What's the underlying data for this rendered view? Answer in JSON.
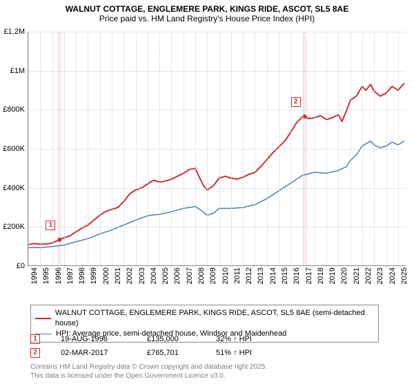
{
  "title": {
    "line1": "WALNUT COTTAGE, ENGLEMERE PARK, KINGS RIDE, ASCOT, SL5 8AE",
    "line2": "Price paid vs. HM Land Registry's House Price Index (HPI)",
    "fontsize": 12,
    "color": "#000000"
  },
  "chart": {
    "type": "line",
    "background_color": "#ffffff",
    "grid_color": "#d0d0d0",
    "x_years": [
      1994,
      1995,
      1996,
      1997,
      1998,
      1999,
      2000,
      2001,
      2002,
      2003,
      2004,
      2005,
      2006,
      2007,
      2008,
      2009,
      2010,
      2011,
      2012,
      2013,
      2014,
      2015,
      2016,
      2017,
      2018,
      2019,
      2020,
      2021,
      2022,
      2023,
      2024,
      2025
    ],
    "y_ticks": [
      0,
      200000,
      400000,
      600000,
      800000,
      1000000,
      1200000
    ],
    "y_tick_labels": [
      "£0",
      "£200K",
      "£400K",
      "£600K",
      "£800K",
      "£1M",
      "£1.2M"
    ],
    "ylim": [
      0,
      1200000
    ],
    "xlim": [
      1994,
      2025.7
    ],
    "label_fontsize": 11,
    "series": [
      {
        "name": "property",
        "label": "WALNUT COTTAGE, ENGLEMERE PARK, KINGS RIDE, ASCOT, SL5 8AE (semi-detached house)",
        "color": "#cc2f33",
        "line_width": 2,
        "data": [
          [
            1994.0,
            110000
          ],
          [
            1994.5,
            115000
          ],
          [
            1995.0,
            112000
          ],
          [
            1995.5,
            113000
          ],
          [
            1996.0,
            118000
          ],
          [
            1996.6,
            135000
          ],
          [
            1997.0,
            145000
          ],
          [
            1997.5,
            155000
          ],
          [
            1998.0,
            175000
          ],
          [
            1998.5,
            195000
          ],
          [
            1999.0,
            210000
          ],
          [
            1999.5,
            235000
          ],
          [
            2000.0,
            260000
          ],
          [
            2000.5,
            280000
          ],
          [
            2001.0,
            290000
          ],
          [
            2001.5,
            300000
          ],
          [
            2002.0,
            330000
          ],
          [
            2002.5,
            370000
          ],
          [
            2003.0,
            390000
          ],
          [
            2003.5,
            400000
          ],
          [
            2004.0,
            420000
          ],
          [
            2004.5,
            440000
          ],
          [
            2005.0,
            430000
          ],
          [
            2005.5,
            435000
          ],
          [
            2006.0,
            445000
          ],
          [
            2006.5,
            460000
          ],
          [
            2007.0,
            475000
          ],
          [
            2007.5,
            495000
          ],
          [
            2008.0,
            500000
          ],
          [
            2008.3,
            460000
          ],
          [
            2008.7,
            410000
          ],
          [
            2009.0,
            390000
          ],
          [
            2009.5,
            410000
          ],
          [
            2010.0,
            450000
          ],
          [
            2010.5,
            460000
          ],
          [
            2011.0,
            450000
          ],
          [
            2011.5,
            445000
          ],
          [
            2012.0,
            455000
          ],
          [
            2012.5,
            470000
          ],
          [
            2013.0,
            480000
          ],
          [
            2013.5,
            510000
          ],
          [
            2014.0,
            545000
          ],
          [
            2014.5,
            580000
          ],
          [
            2015.0,
            610000
          ],
          [
            2015.5,
            640000
          ],
          [
            2016.0,
            685000
          ],
          [
            2016.5,
            735000
          ],
          [
            2017.0,
            765000
          ],
          [
            2017.17,
            765701
          ],
          [
            2017.5,
            755000
          ],
          [
            2018.0,
            760000
          ],
          [
            2018.5,
            770000
          ],
          [
            2019.0,
            750000
          ],
          [
            2019.5,
            760000
          ],
          [
            2020.0,
            775000
          ],
          [
            2020.3,
            740000
          ],
          [
            2020.7,
            800000
          ],
          [
            2021.0,
            850000
          ],
          [
            2021.5,
            870000
          ],
          [
            2022.0,
            920000
          ],
          [
            2022.3,
            900000
          ],
          [
            2022.7,
            930000
          ],
          [
            2023.0,
            895000
          ],
          [
            2023.5,
            870000
          ],
          [
            2024.0,
            885000
          ],
          [
            2024.5,
            920000
          ],
          [
            2025.0,
            900000
          ],
          [
            2025.5,
            935000
          ]
        ]
      },
      {
        "name": "hpi",
        "label": "HPI: Average price, semi-detached house, Windsor and Maidenhead",
        "color": "#4a7fb0",
        "line_width": 1.5,
        "data": [
          [
            1994.0,
            95000
          ],
          [
            1995.0,
            95000
          ],
          [
            1996.0,
            100000
          ],
          [
            1997.0,
            108000
          ],
          [
            1998.0,
            125000
          ],
          [
            1999.0,
            140000
          ],
          [
            2000.0,
            165000
          ],
          [
            2001.0,
            185000
          ],
          [
            2002.0,
            210000
          ],
          [
            2003.0,
            235000
          ],
          [
            2004.0,
            258000
          ],
          [
            2005.0,
            265000
          ],
          [
            2006.0,
            278000
          ],
          [
            2007.0,
            295000
          ],
          [
            2008.0,
            305000
          ],
          [
            2008.5,
            285000
          ],
          [
            2009.0,
            260000
          ],
          [
            2009.5,
            270000
          ],
          [
            2010.0,
            295000
          ],
          [
            2011.0,
            295000
          ],
          [
            2012.0,
            300000
          ],
          [
            2013.0,
            315000
          ],
          [
            2014.0,
            345000
          ],
          [
            2015.0,
            385000
          ],
          [
            2016.0,
            425000
          ],
          [
            2017.0,
            465000
          ],
          [
            2018.0,
            480000
          ],
          [
            2019.0,
            475000
          ],
          [
            2020.0,
            490000
          ],
          [
            2020.7,
            510000
          ],
          [
            2021.0,
            540000
          ],
          [
            2021.5,
            570000
          ],
          [
            2022.0,
            615000
          ],
          [
            2022.7,
            640000
          ],
          [
            2023.0,
            620000
          ],
          [
            2023.5,
            605000
          ],
          [
            2024.0,
            615000
          ],
          [
            2024.5,
            635000
          ],
          [
            2025.0,
            620000
          ],
          [
            2025.5,
            640000
          ]
        ]
      }
    ],
    "sale_markers": [
      {
        "n": "1",
        "year": 1996.63,
        "value": 135000,
        "box_color": "#cc2f33"
      },
      {
        "n": "2",
        "year": 2017.17,
        "value": 765701,
        "box_color": "#cc2f33"
      }
    ],
    "sale_band_color": "rgba(204,47,51,0.10)",
    "marker_dot_color": "#cc2f33",
    "marker_dot_radius": 3
  },
  "legend": {
    "border_color": "#888888",
    "fontsize": 11,
    "rows": [
      {
        "color": "#cc2f33",
        "width": 2,
        "label_path": "chart.series.0.label"
      },
      {
        "color": "#4a7fb0",
        "width": 1.5,
        "label_path": "chart.series.1.label"
      }
    ]
  },
  "sales": [
    {
      "n": "1",
      "date": "19-AUG-1996",
      "price": "£135,000",
      "hpi": "32% ↑ HPI"
    },
    {
      "n": "2",
      "date": "02-MAR-2017",
      "price": "£765,701",
      "hpi": "51% ↑ HPI"
    }
  ],
  "footer": {
    "line1": "Contains HM Land Registry data © Crown copyright and database right 2025.",
    "line2": "This data is licensed under the Open Government Licence v3.0.",
    "color": "#808080",
    "fontsize": 10
  }
}
